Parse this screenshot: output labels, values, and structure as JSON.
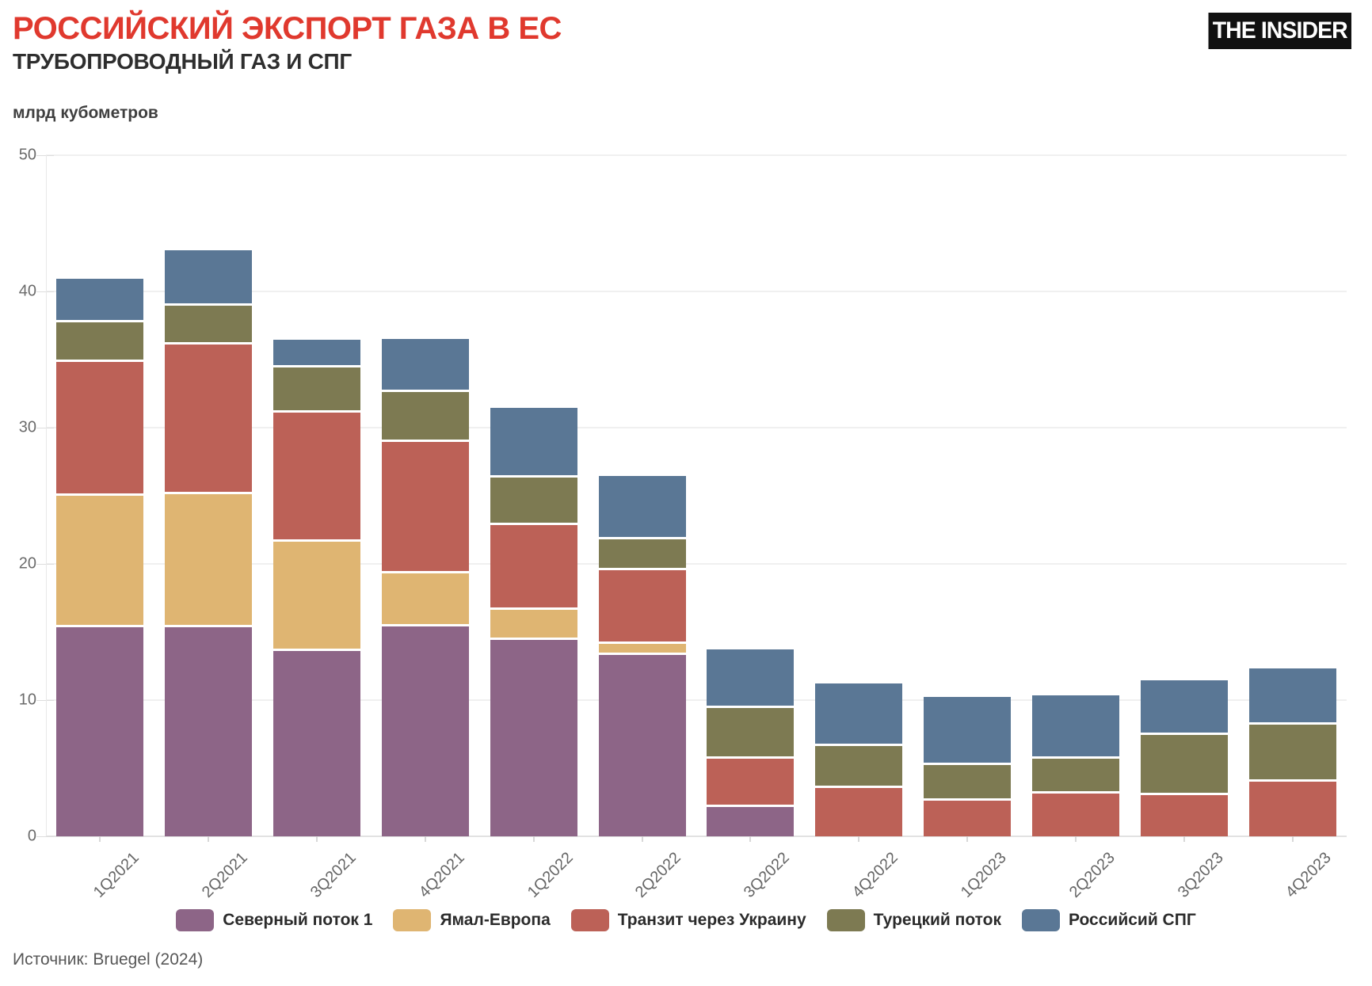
{
  "header": {
    "title": "РОССИЙСКИЙ ЭКСПОРТ ГАЗА В ЕС",
    "subtitle": "ТРУБОПРОВОДНЫЙ ГАЗ И СПГ",
    "logo_text": "THE INSIDER"
  },
  "unit_label": "млрд кубометров",
  "source_note": "Источник: Bruegel (2024)",
  "colors": {
    "title_red": "#e0392e",
    "subtitle_dark": "#2e2e2e",
    "grid": "#f0f0f0",
    "axis_text": "#666666",
    "logo_bg": "#111111",
    "logo_text": "#ffffff"
  },
  "chart_data": {
    "type": "bar",
    "stacked": true,
    "title": "РОССИЙСКИЙ ЭКСПОРТ ГАЗА В ЕС — ТРУБОПРОВОДНЫЙ ГАЗ И СПГ",
    "ylabel": "млрд кубометров",
    "xlabel": "",
    "ylim": [
      0,
      50
    ],
    "y_ticks": [
      0,
      10,
      20,
      30,
      40,
      50
    ],
    "grid": true,
    "legend_position": "bottom",
    "categories": [
      "1Q2021",
      "2Q2021",
      "3Q2021",
      "4Q2021",
      "1Q2022",
      "2Q2022",
      "3Q2022",
      "4Q2022",
      "1Q2023",
      "2Q2023",
      "3Q2023",
      "4Q2023"
    ],
    "series": [
      {
        "name": "Северный поток 1",
        "color": "#8d6587",
        "values": [
          15.5,
          15.5,
          13.8,
          15.6,
          14.6,
          13.5,
          2.3,
          0,
          0,
          0,
          0,
          0
        ]
      },
      {
        "name": "Ямал-Европа",
        "color": "#dfb572",
        "values": [
          9.7,
          9.8,
          8.0,
          3.9,
          2.2,
          0.8,
          0,
          0,
          0,
          0,
          0,
          0
        ]
      },
      {
        "name": "Транзит через Украину",
        "color": "#bc6157",
        "values": [
          9.8,
          11.0,
          9.5,
          9.6,
          6.2,
          5.4,
          3.6,
          3.7,
          2.8,
          3.3,
          3.2,
          4.2
        ]
      },
      {
        "name": "Турецкий поток",
        "color": "#7d7a52",
        "values": [
          2.9,
          2.8,
          3.3,
          3.7,
          3.5,
          2.3,
          3.7,
          3.1,
          2.6,
          2.6,
          4.4,
          4.2
        ]
      },
      {
        "name": "Российсий СПГ",
        "color": "#5a7795",
        "values": [
          3.2,
          4.1,
          2.0,
          3.9,
          5.1,
          4.6,
          4.3,
          4.6,
          5.0,
          4.6,
          4.0,
          4.1
        ]
      }
    ],
    "totals": [
      41.1,
      43.2,
      36.5,
      36.7,
      31.6,
      26.6,
      13.9,
      11.4,
      10.4,
      10.5,
      11.6,
      12.5
    ]
  }
}
